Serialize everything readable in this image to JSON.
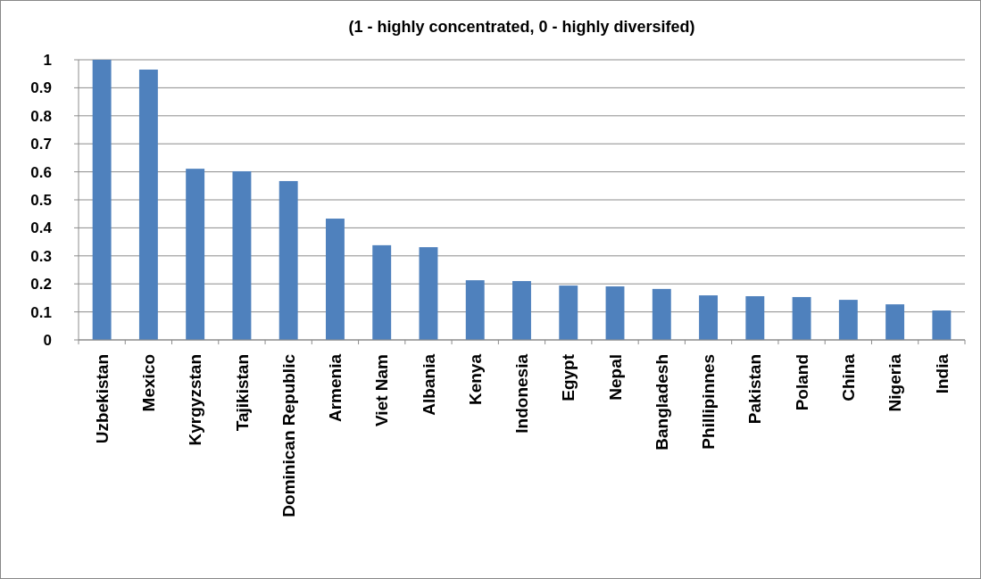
{
  "chart_data": {
    "type": "bar",
    "title": "(1 - highly concentrated, 0 - highly diversifed)",
    "categories": [
      "Uzbekistan",
      "Mexico",
      "Kyrgyzstan",
      "Tajikistan",
      "Dominican Republic",
      "Armenia",
      "Viet Nam",
      "Albania",
      "Kenya",
      "Indonesia",
      "Egypt",
      "Nepal",
      "Bangladesh",
      "Phillipinnes",
      "Pakistan",
      "Poland",
      "China",
      "Nigeria",
      "India"
    ],
    "values": [
      1.0,
      0.965,
      0.611,
      0.602,
      0.567,
      0.433,
      0.338,
      0.331,
      0.213,
      0.21,
      0.194,
      0.191,
      0.182,
      0.159,
      0.156,
      0.153,
      0.143,
      0.127,
      0.105
    ],
    "color": "#4f81bd",
    "ylim": [
      0,
      1
    ],
    "yticks": [
      0,
      0.1,
      0.2,
      0.3,
      0.4,
      0.5,
      0.6,
      0.7,
      0.8,
      0.9,
      1
    ],
    "grid": "y"
  }
}
